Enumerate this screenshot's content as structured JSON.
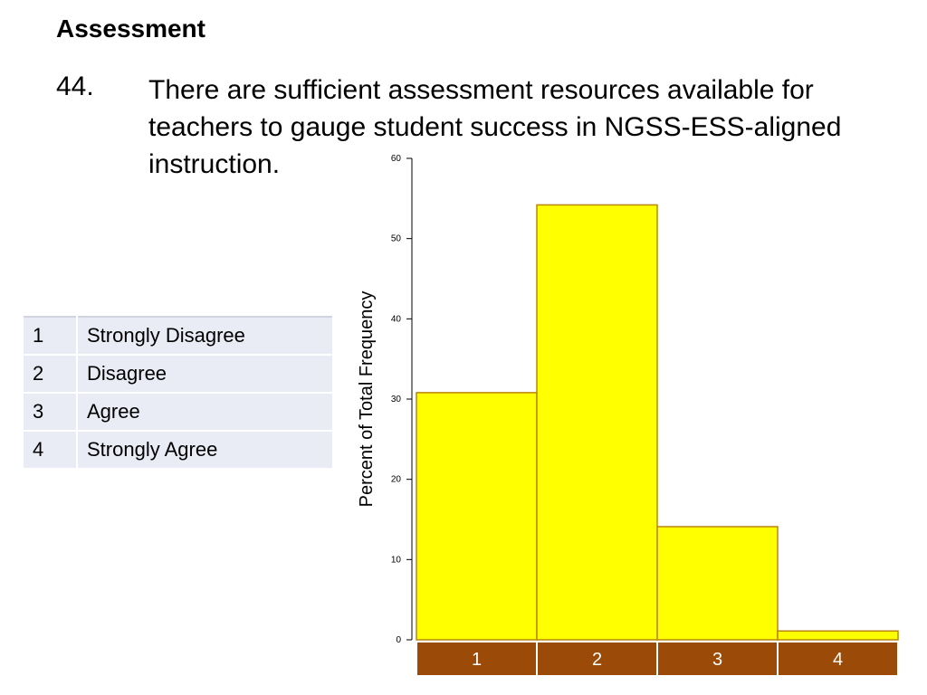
{
  "header": {
    "section_title": "Assessment",
    "question_number": "44.",
    "question_lines": [
      "There are sufficient assessment resources available for",
      "teachers to gauge student success in NGSS-ESS-aligned",
      "instruction."
    ]
  },
  "legend_table": {
    "rows": [
      {
        "value": "1",
        "label": "Strongly Disagree"
      },
      {
        "value": "2",
        "label": "Disagree"
      },
      {
        "value": "3",
        "label": "Agree"
      },
      {
        "value": "4",
        "label": "Strongly Agree"
      }
    ]
  },
  "chart_data": {
    "type": "bar",
    "categories": [
      "1",
      "2",
      "3",
      "4"
    ],
    "values": [
      30.8,
      54.2,
      14.1,
      1.1
    ],
    "title": "",
    "xlabel": "",
    "ylabel": "Percent of Total Frequency",
    "ylim": [
      0,
      60
    ],
    "yticks": [
      0,
      10,
      20,
      30,
      40,
      50,
      60
    ],
    "grid": false,
    "bar_color": "#ffff00",
    "bar_edge_color": "#b8860b",
    "category_bg_color": "#9c4a08",
    "category_text_color": "#ffffff"
  }
}
